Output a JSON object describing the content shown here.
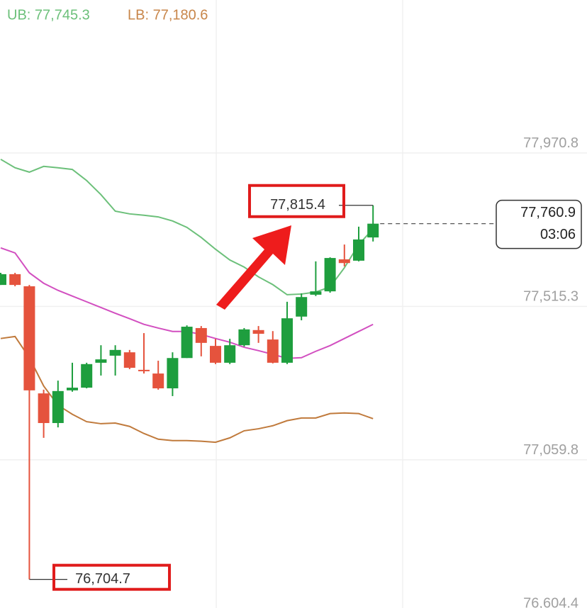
{
  "chart_data": {
    "type": "candlestick",
    "upper_band_label": "UB: 77,745.3",
    "lower_band_label": "LB: 77,180.6",
    "ylim": [
      76603,
      78425
    ],
    "yticks": [
      {
        "value": 77970.8,
        "label": "77,970.8"
      },
      {
        "value": 77515.3,
        "label": "77,515.3"
      },
      {
        "value": 77059.8,
        "label": "77,059.8"
      },
      {
        "value": 76604.4,
        "label": "76,604.4"
      }
    ],
    "grid": true,
    "up_color": "#1e9e3e",
    "down_color": "#e5533d",
    "open": [
      77579,
      77611,
      77575,
      77257,
      77169,
      77266,
      77274,
      77348,
      77369,
      77379,
      77327,
      77316,
      77272,
      77362,
      77451,
      77398,
      77348,
      77400,
      77445,
      77417,
      77348,
      77485,
      77550,
      77560,
      77655,
      77651,
      77720
    ],
    "high": [
      77615,
      77615,
      77579,
      77268,
      77295,
      77348,
      77348,
      77400,
      77400,
      77386,
      77436,
      77354,
      77379,
      77459,
      77457,
      77419,
      77419,
      77451,
      77457,
      77442,
      77529,
      77554,
      77649,
      77661,
      77699,
      77752,
      77815.4
    ],
    "low": [
      77579,
      77575,
      76704.7,
      77125,
      77156,
      77262,
      77272,
      77310,
      77310,
      77329,
      77316,
      77268,
      77249,
      77362,
      77367,
      77344,
      77344,
      77396,
      77407,
      77346,
      77344,
      77474,
      77546,
      77556,
      77634,
      77649,
      77708
    ],
    "close": [
      77611,
      77579,
      77266,
      77169,
      77264,
      77274,
      77344,
      77358,
      77386,
      77333,
      77323,
      77272,
      77362,
      77455,
      77407,
      77348,
      77400,
      77447,
      77434,
      77348,
      77480,
      77543,
      77560,
      77659,
      77644,
      77714,
      77760.9
    ],
    "high_value_labels": [
      null,
      null,
      null,
      null,
      null,
      null,
      null,
      null,
      null,
      null,
      null,
      null,
      null,
      null,
      null,
      null,
      null,
      null,
      null,
      null,
      null,
      null,
      null,
      null,
      null,
      null,
      "77,815.4"
    ],
    "low_value_labels": [
      null,
      null,
      "76,704.7",
      null,
      null,
      null,
      null,
      null,
      null,
      null,
      null,
      null,
      null,
      null,
      null,
      null,
      null,
      null,
      null,
      null,
      null,
      null,
      null,
      null,
      null,
      null,
      null
    ],
    "overlays": [
      {
        "color": "#6cc07a",
        "values": [
          77952,
          77927,
          77914,
          77931,
          77927,
          77922,
          77889,
          77847,
          77798,
          77790,
          77786,
          77781,
          77769,
          77750,
          77720,
          77685,
          77653,
          77632,
          77603,
          77580,
          77550,
          77552,
          77558,
          77573,
          77630,
          77699,
          77745
        ]
      },
      {
        "color": "#d24fc0",
        "values": [
          77689,
          77674,
          77615,
          77584,
          77563,
          77546,
          77529,
          77512,
          77495,
          77479,
          77462,
          77451,
          77441,
          77441,
          77432,
          77420,
          77409,
          77394,
          77384,
          77373,
          77361,
          77363,
          77382,
          77399,
          77420,
          77441,
          77462
        ]
      },
      {
        "color": "#c07a3c",
        "values": [
          77420,
          77426,
          77363,
          77279,
          77222,
          77195,
          77173,
          77167,
          77169,
          77159,
          77138,
          77121,
          77117,
          77117,
          77115,
          77112,
          77125,
          77146,
          77152,
          77161,
          77176,
          77184,
          77184,
          77197,
          77199,
          77197,
          77182
        ]
      }
    ],
    "last_price_label": "77,760.9",
    "countdown": "03:06"
  }
}
